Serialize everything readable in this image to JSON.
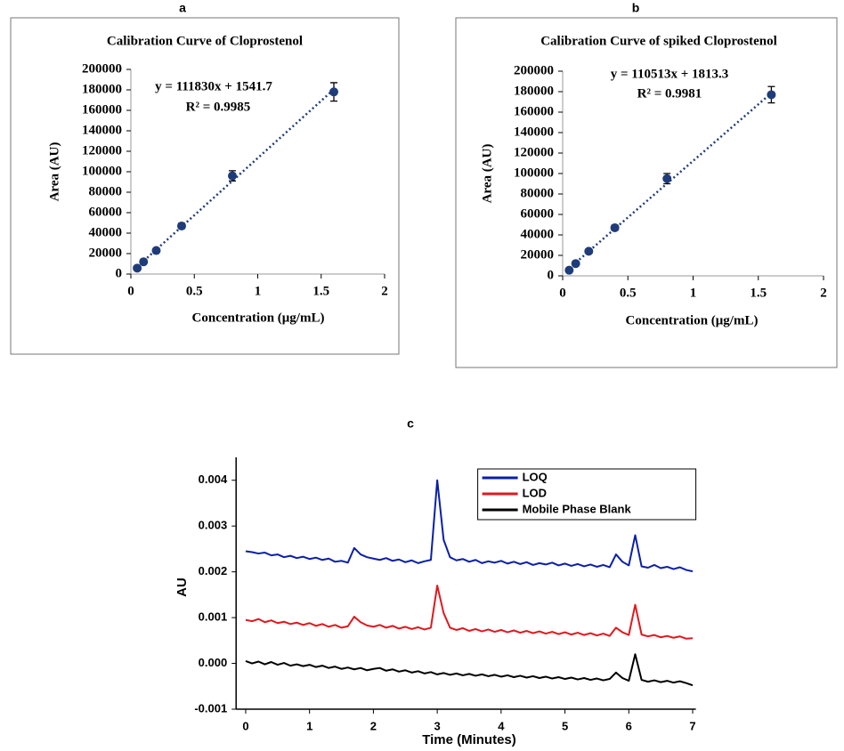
{
  "chart_data": [
    {
      "type": "scatter",
      "panel_label": "a",
      "title": "Calibration Curve of Cloprostenol",
      "x_label": "Concentration (μg/mL)",
      "y_label": "Area (AU)",
      "equation": "y = 111830x + 1541.7",
      "r_squared": "R² = 0.9985",
      "x": [
        0.05,
        0.1,
        0.2,
        0.4,
        0.8,
        1.6
      ],
      "values": [
        5800,
        12000,
        23000,
        47000,
        96000,
        178000
      ],
      "errors": [
        1500,
        1500,
        1800,
        2500,
        5000,
        9000
      ],
      "trendline": {
        "slope": 111830,
        "intercept": 1541.7
      },
      "color": "#1f3c7a",
      "xlim": [
        0,
        2
      ],
      "ylim": [
        0,
        200000
      ],
      "xticks": [
        0,
        0.5,
        1,
        1.5,
        2
      ],
      "yticks": [
        0,
        20000,
        40000,
        60000,
        80000,
        100000,
        120000,
        140000,
        160000,
        180000,
        200000
      ],
      "grid": false
    },
    {
      "type": "scatter",
      "panel_label": "b",
      "title": "Calibration Curve of spiked Cloprostenol",
      "x_label": "Concentration (μg/mL)",
      "y_label": "Area (AU)",
      "equation": "y = 110513x + 1813.3",
      "r_squared": "R² = 0.9981",
      "x": [
        0.05,
        0.1,
        0.2,
        0.4,
        0.8,
        1.6
      ],
      "values": [
        5500,
        12000,
        24000,
        47000,
        95000,
        177000
      ],
      "errors": [
        1500,
        1500,
        1800,
        2500,
        5000,
        8000
      ],
      "trendline": {
        "slope": 110513,
        "intercept": 1813.3
      },
      "color": "#1f3c7a",
      "xlim": [
        0,
        2
      ],
      "ylim": [
        0,
        200000
      ],
      "xticks": [
        0,
        0.5,
        1,
        1.5,
        2
      ],
      "yticks": [
        0,
        20000,
        40000,
        60000,
        80000,
        100000,
        120000,
        140000,
        160000,
        180000,
        200000
      ],
      "grid": false
    },
    {
      "type": "line",
      "panel_label": "c",
      "x_label": "Time (Minutes)",
      "y_label": "AU",
      "x": [
        0,
        0.1,
        0.2,
        0.3,
        0.4,
        0.5,
        0.6,
        0.7,
        0.8,
        0.9,
        1,
        1.1,
        1.2,
        1.3,
        1.4,
        1.5,
        1.6,
        1.7,
        1.8,
        1.9,
        2,
        2.1,
        2.2,
        2.3,
        2.4,
        2.5,
        2.6,
        2.7,
        2.8,
        2.9,
        3,
        3.1,
        3.2,
        3.3,
        3.4,
        3.5,
        3.6,
        3.7,
        3.8,
        3.9,
        4,
        4.1,
        4.2,
        4.3,
        4.4,
        4.5,
        4.6,
        4.7,
        4.8,
        4.9,
        5,
        5.1,
        5.2,
        5.3,
        5.4,
        5.5,
        5.6,
        5.7,
        5.8,
        5.9,
        6,
        6.1,
        6.2,
        6.3,
        6.4,
        6.5,
        6.6,
        6.7,
        6.8,
        6.9,
        7
      ],
      "series": [
        {
          "name": "LOQ",
          "color": "#0a1fa8",
          "values": [
            0.00245,
            0.00243,
            0.0024,
            0.00242,
            0.00236,
            0.00238,
            0.00232,
            0.00235,
            0.0023,
            0.00233,
            0.00228,
            0.00231,
            0.00226,
            0.00229,
            0.00222,
            0.00224,
            0.0022,
            0.00252,
            0.00238,
            0.00232,
            0.00229,
            0.00226,
            0.0023,
            0.00224,
            0.00227,
            0.00221,
            0.00225,
            0.00219,
            0.00223,
            0.00226,
            0.004,
            0.0027,
            0.00232,
            0.00225,
            0.00228,
            0.00222,
            0.00226,
            0.00219,
            0.00223,
            0.0022,
            0.00224,
            0.00218,
            0.00222,
            0.00217,
            0.00221,
            0.00215,
            0.00219,
            0.00216,
            0.0022,
            0.00214,
            0.00218,
            0.00213,
            0.00217,
            0.00212,
            0.00216,
            0.00211,
            0.00215,
            0.0021,
            0.00238,
            0.00222,
            0.00214,
            0.0028,
            0.00212,
            0.00209,
            0.00215,
            0.00208,
            0.00211,
            0.00206,
            0.0021,
            0.00204,
            0.00201
          ]
        },
        {
          "name": "LOD",
          "color": "#e0181e",
          "values": [
            0.00095,
            0.00092,
            0.00097,
            0.0009,
            0.00094,
            0.00088,
            0.00091,
            0.00086,
            0.00089,
            0.00084,
            0.00088,
            0.00082,
            0.00086,
            0.0008,
            0.00084,
            0.00078,
            0.00081,
            0.00102,
            0.0009,
            0.00083,
            0.0008,
            0.00084,
            0.00078,
            0.00082,
            0.00076,
            0.0008,
            0.00075,
            0.00079,
            0.00074,
            0.00078,
            0.0017,
            0.0011,
            0.00078,
            0.00073,
            0.00077,
            0.00071,
            0.00075,
            0.0007,
            0.00074,
            0.00069,
            0.00073,
            0.00068,
            0.00072,
            0.00067,
            0.00071,
            0.00066,
            0.0007,
            0.00065,
            0.00069,
            0.00064,
            0.00068,
            0.00063,
            0.00067,
            0.00062,
            0.00066,
            0.00061,
            0.00065,
            0.0006,
            0.00078,
            0.00068,
            0.00062,
            0.00128,
            0.00063,
            0.00059,
            0.00062,
            0.00057,
            0.0006,
            0.00056,
            0.00059,
            0.00054,
            0.00055
          ]
        },
        {
          "name": "Mobile Phase Blank",
          "color": "#000000",
          "values": [
            5e-05,
            0,
            4e-05,
            -2e-05,
            3e-05,
            -3e-05,
            1e-05,
            -5e-05,
            -2e-05,
            -6e-05,
            -3e-05,
            -8e-05,
            -5e-05,
            -0.0001,
            -7e-05,
            -0.00012,
            -9e-05,
            -0.00013,
            -0.0001,
            -0.00015,
            -0.00012,
            -0.0001,
            -0.00016,
            -0.00013,
            -0.00018,
            -0.00015,
            -0.0002,
            -0.00017,
            -0.00022,
            -0.00019,
            -0.00024,
            -0.00021,
            -0.00025,
            -0.00022,
            -0.00026,
            -0.00023,
            -0.00027,
            -0.00024,
            -0.00028,
            -0.00025,
            -0.00029,
            -0.00026,
            -0.0003,
            -0.00027,
            -0.00031,
            -0.00028,
            -0.00032,
            -0.00029,
            -0.00033,
            -0.0003,
            -0.00034,
            -0.00031,
            -0.00035,
            -0.00032,
            -0.00036,
            -0.00033,
            -0.00037,
            -0.00034,
            -0.0002,
            -0.00032,
            -0.00038,
            0.0002,
            -0.00036,
            -0.0004,
            -0.00037,
            -0.00041,
            -0.00038,
            -0.00042,
            -0.00039,
            -0.00043,
            -0.00048
          ]
        }
      ],
      "xlim": [
        -0.15,
        7.05
      ],
      "ylim": [
        -0.001,
        0.0045
      ],
      "xticks": [
        0,
        1,
        2,
        3,
        4,
        5,
        6,
        7
      ],
      "yticks": [
        {
          "value": -0.001,
          "label": "-0.001"
        },
        {
          "value": 0,
          "label": "0.000"
        },
        0.001,
        0.002,
        0.003,
        0.004
      ],
      "legend": "upper right",
      "grid": false
    }
  ]
}
